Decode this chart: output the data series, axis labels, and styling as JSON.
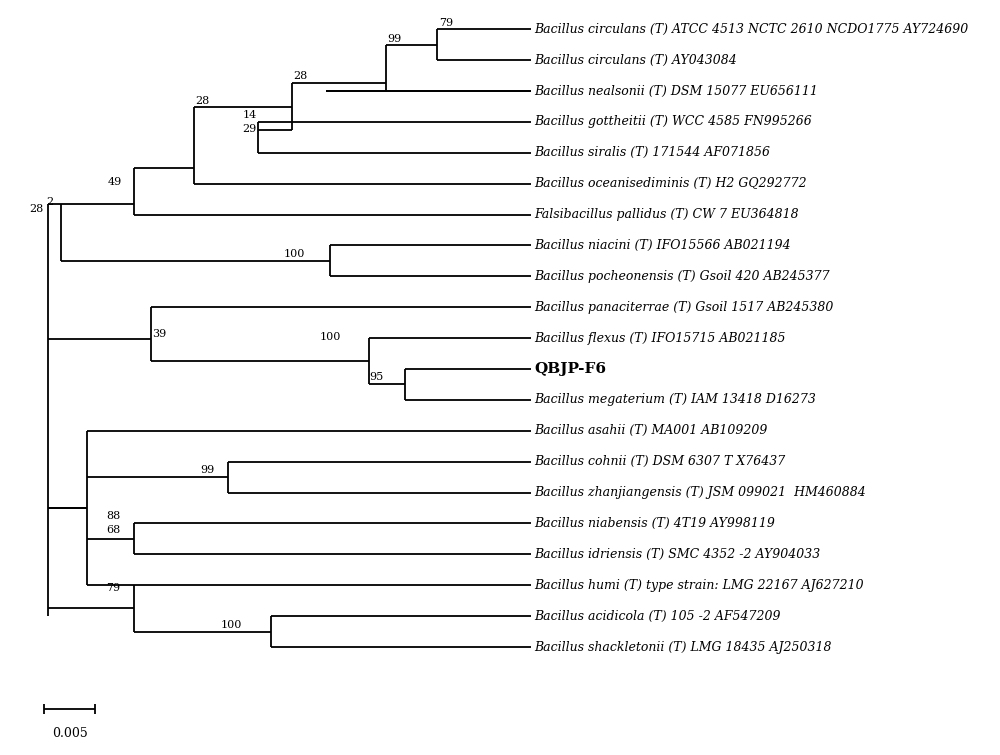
{
  "background": "#ffffff",
  "scale_bar_label": "0.005",
  "taxa": [
    {
      "name": "Bacillus circulans",
      "suffix": " (T) ATCC 4513 NCTC 2610 NCDO1775 AY724690",
      "y": 1
    },
    {
      "name": "Bacillus circulans",
      "suffix": " (T) AY043084",
      "y": 2
    },
    {
      "name": "Bacillus nealsonii",
      "suffix": " (T) DSM 15077 EU656111",
      "y": 3
    },
    {
      "name": "Bacillus gottheitii",
      "suffix": " (T) WCC 4585 FN995266",
      "y": 4
    },
    {
      "name": "Bacillus siralis",
      "suffix": " (T) 171544 AF071856",
      "y": 5
    },
    {
      "name": "Bacillus oceanisediminis",
      "suffix": " (T) H2 GQ292772",
      "y": 6
    },
    {
      "name": "Falsibacillus pallidus",
      "suffix": " (T) CW 7 EU364818",
      "y": 7
    },
    {
      "name": "Bacillus niacini",
      "suffix": " (T) IFO15566 AB021194",
      "y": 8
    },
    {
      "name": "Bacillus pocheonensis",
      "suffix": " (T) Gsoil 420 AB245377",
      "y": 9
    },
    {
      "name": "Bacillus panaciterrae",
      "suffix": " (T) Gsoil 1517 AB245380",
      "y": 10
    },
    {
      "name": "Bacillus flexus",
      "suffix": " (T) IFO15715 AB021185",
      "y": 11
    },
    {
      "name": "QBJP-F6",
      "suffix": "",
      "y": 12
    },
    {
      "name": "Bacillus megaterium",
      "suffix": " (T) IAM 13418 D16273",
      "y": 13
    },
    {
      "name": "Bacillus asahii",
      "suffix": " (T) MA001 AB109209",
      "y": 14
    },
    {
      "name": "Bacillus cohnii",
      "suffix": " (T) DSM 6307 T X76437",
      "y": 15
    },
    {
      "name": "Bacillus zhanjiangensis",
      "suffix": " (T) JSM 099021  HM460884",
      "y": 16
    },
    {
      "name": "Bacillus niabensis",
      "suffix": " (T) 4T19 AY998119",
      "y": 17
    },
    {
      "name": "Bacillus idriensis",
      "suffix": " (T) SMC 4352 -2 AY904033",
      "y": 18
    },
    {
      "name": "Bacillus humi",
      "suffix": " (T) type strain: LMG 22167 AJ627210",
      "y": 19
    },
    {
      "name": "Bacillus acidicola",
      "suffix": " (T) 105 -2 AF547209",
      "y": 20
    },
    {
      "name": "Bacillus shackletonii",
      "suffix": " (T) LMG 18435 AJ250318",
      "y": 21
    }
  ]
}
